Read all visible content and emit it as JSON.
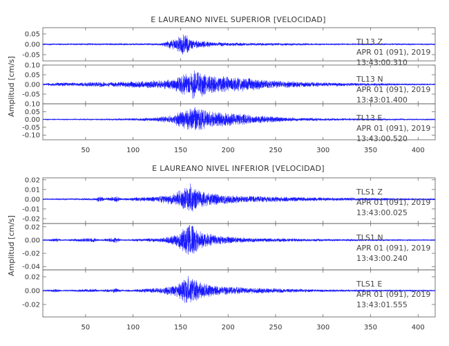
{
  "colors": {
    "trace": "#1a1aff",
    "axis": "#555555",
    "text": "#333333",
    "background": "#ffffff"
  },
  "chart_data": [
    {
      "type": "line",
      "title": "E LAUREANO NIVEL SUPERIOR [VELOCIDAD]",
      "ylabel": "Amplitud [cm/s]",
      "xlim": [
        5,
        418
      ],
      "x_ticks": [
        "50",
        "100",
        "150",
        "200",
        "250",
        "300",
        "350",
        "400"
      ],
      "x_tick_values": [
        50,
        100,
        150,
        200,
        250,
        300,
        350,
        400
      ],
      "grid": false,
      "panels": [
        {
          "name": "TL13 Z",
          "station_label": "TL13   Z",
          "date_label": "APR 01 (091), 2019",
          "time_label": "13:43:00.310",
          "ylim": [
            -0.08,
            0.08
          ],
          "y_ticks": [
            "0.05",
            "0.00",
            "-0.05"
          ],
          "y_tick_values": [
            0.05,
            0.0,
            -0.05
          ],
          "envelope": [
            [
              5,
              0.004
            ],
            [
              130,
              0.006
            ],
            [
              136,
              0.02
            ],
            [
              145,
              0.035
            ],
            [
              150,
              0.05
            ],
            [
              155,
              0.07
            ],
            [
              160,
              0.03
            ],
            [
              170,
              0.02
            ],
            [
              185,
              0.012
            ],
            [
              220,
              0.008
            ],
            [
              300,
              0.005
            ],
            [
              418,
              0.004
            ]
          ]
        },
        {
          "name": "TL13 N",
          "station_label": "TL13   N",
          "date_label": "APR 01 (091), 2019",
          "time_label": "13:43:01.400",
          "ylim": [
            -0.1,
            0.1
          ],
          "y_ticks": [
            "0.10",
            "0.05",
            "0.00",
            "-0.05"
          ],
          "y_tick_values": [
            0.1,
            0.05,
            0.0,
            -0.05
          ],
          "envelope": [
            [
              5,
              0.004
            ],
            [
              20,
              0.012
            ],
            [
              40,
              0.01
            ],
            [
              60,
              0.015
            ],
            [
              80,
              0.013
            ],
            [
              100,
              0.02
            ],
            [
              120,
              0.025
            ],
            [
              140,
              0.03
            ],
            [
              155,
              0.065
            ],
            [
              165,
              0.09
            ],
            [
              180,
              0.055
            ],
            [
              200,
              0.045
            ],
            [
              220,
              0.04
            ],
            [
              240,
              0.025
            ],
            [
              260,
              0.02
            ],
            [
              300,
              0.012
            ],
            [
              350,
              0.008
            ],
            [
              418,
              0.004
            ]
          ]
        },
        {
          "name": "TL13 E",
          "station_label": "TL13   E",
          "date_label": "APR 01 (091), 2019",
          "time_label": "13:43:00.520",
          "ylim": [
            -0.13,
            0.1
          ],
          "y_ticks": [
            "0.10",
            "0.05",
            "0.00",
            "-0.05",
            "-0.10"
          ],
          "y_tick_values": [
            0.1,
            0.05,
            0.0,
            -0.05,
            -0.1
          ],
          "envelope": [
            [
              5,
              0.003
            ],
            [
              80,
              0.006
            ],
            [
              120,
              0.012
            ],
            [
              140,
              0.03
            ],
            [
              155,
              0.07
            ],
            [
              165,
              0.1
            ],
            [
              180,
              0.06
            ],
            [
              200,
              0.05
            ],
            [
              215,
              0.04
            ],
            [
              240,
              0.025
            ],
            [
              270,
              0.012
            ],
            [
              320,
              0.008
            ],
            [
              418,
              0.004
            ]
          ]
        }
      ]
    },
    {
      "type": "line",
      "title": "E LAUREANO NIVEL INFERIOR [VELOCIDAD]",
      "ylabel": "Amplitud [cm/s]",
      "xlim": [
        5,
        418
      ],
      "x_ticks": [
        "50",
        "100",
        "150",
        "200",
        "250",
        "300",
        "350",
        "400"
      ],
      "x_tick_values": [
        50,
        100,
        150,
        200,
        250,
        300,
        350,
        400
      ],
      "grid": false,
      "panels": [
        {
          "name": "TLS1 Z",
          "station_label": "TLS1   Z",
          "date_label": "APR 01 (091), 2019",
          "time_label": "13:43:00.025",
          "ylim": [
            -0.025,
            0.022
          ],
          "y_ticks": [
            "0.02",
            "0.01",
            "0.00",
            "-0.01",
            "-0.02"
          ],
          "y_tick_values": [
            0.02,
            0.01,
            0.0,
            -0.01,
            -0.02
          ],
          "envelope": [
            [
              5,
              0.0008
            ],
            [
              60,
              0.0012
            ],
            [
              65,
              0.004
            ],
            [
              70,
              0.0012
            ],
            [
              82,
              0.004
            ],
            [
              88,
              0.0012
            ],
            [
              130,
              0.004
            ],
            [
              145,
              0.008
            ],
            [
              155,
              0.015
            ],
            [
              160,
              0.022
            ],
            [
              170,
              0.01
            ],
            [
              190,
              0.006
            ],
            [
              220,
              0.004
            ],
            [
              300,
              0.002
            ],
            [
              418,
              0.001
            ]
          ]
        },
        {
          "name": "TLS1 N",
          "station_label": "TLS1   N",
          "date_label": "APR 01 (091), 2019",
          "time_label": "13:43:00.240",
          "ylim": [
            -0.045,
            0.025
          ],
          "y_ticks": [
            "0.02",
            "0.00",
            "-0.02",
            "-0.04"
          ],
          "y_tick_values": [
            0.02,
            0.0,
            -0.02,
            -0.04
          ],
          "envelope": [
            [
              5,
              0.001
            ],
            [
              20,
              0.003
            ],
            [
              25,
              0.001
            ],
            [
              60,
              0.004
            ],
            [
              65,
              0.001
            ],
            [
              82,
              0.005
            ],
            [
              88,
              0.001
            ],
            [
              130,
              0.004
            ],
            [
              145,
              0.01
            ],
            [
              155,
              0.022
            ],
            [
              160,
              0.035
            ],
            [
              170,
              0.015
            ],
            [
              190,
              0.008
            ],
            [
              220,
              0.004
            ],
            [
              300,
              0.002
            ],
            [
              418,
              0.001
            ]
          ]
        },
        {
          "name": "TLS1 E",
          "station_label": "TLS1   E",
          "date_label": "APR 01 (091), 2019",
          "time_label": "13:43:01.555",
          "ylim": [
            -0.038,
            0.03
          ],
          "y_ticks": [
            "0.02",
            "0.00",
            "-0.02"
          ],
          "y_tick_values": [
            0.02,
            0.0,
            -0.02
          ],
          "envelope": [
            [
              5,
              0.001
            ],
            [
              20,
              0.003
            ],
            [
              25,
              0.001
            ],
            [
              60,
              0.003
            ],
            [
              65,
              0.001
            ],
            [
              82,
              0.004
            ],
            [
              88,
              0.001
            ],
            [
              130,
              0.005
            ],
            [
              145,
              0.01
            ],
            [
              155,
              0.022
            ],
            [
              160,
              0.028
            ],
            [
              170,
              0.014
            ],
            [
              190,
              0.008
            ],
            [
              220,
              0.005
            ],
            [
              300,
              0.002
            ],
            [
              418,
              0.001
            ]
          ]
        }
      ]
    }
  ]
}
